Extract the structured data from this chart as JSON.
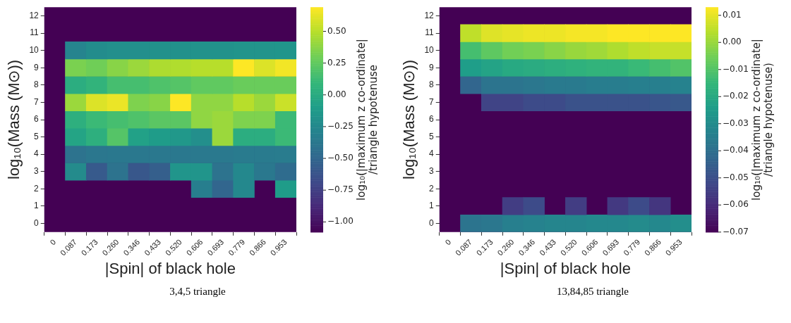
{
  "chart_data": [
    {
      "type": "heatmap",
      "xlabel": "|Spin| of black hole",
      "ylabel": "log₁₀(Mass (M⊙))",
      "clabel": "log₁₀(|maximum z co-ordinate|\n/triangle hypotenuse",
      "annotations": [
        "3,4,5 triangle"
      ],
      "categories": [
        "0",
        "0.087",
        "0.173",
        "0.260",
        "0.346",
        "0.433",
        "0.520",
        "0.606",
        "0.693",
        "0.779",
        "0.866",
        "0.953"
      ],
      "y_categories": [
        "12",
        "11",
        "10",
        "9",
        "8",
        "7",
        "6",
        "5",
        "4",
        "3",
        "2",
        "1",
        "0"
      ],
      "clim": [
        -1.08,
        0.69
      ],
      "cticks": [
        {
          "value": -1.0,
          "label": "−1.00"
        },
        -0.75,
        {
          "value": -0.5,
          "label": "−0.50"
        },
        -0.25,
        {
          "value": 0.0,
          "label": "0.00"
        },
        0.25,
        {
          "value": 0.5,
          "label": "0.50"
        }
      ],
      "cells": [
        [
          null,
          null,
          null,
          null,
          null,
          null,
          null,
          null,
          null,
          null,
          null,
          null
        ],
        [
          null,
          null,
          null,
          null,
          null,
          null,
          null,
          null,
          null,
          null,
          null,
          null
        ],
        [
          null,
          -0.28,
          -0.22,
          -0.2,
          -0.2,
          -0.19,
          -0.19,
          -0.18,
          -0.18,
          -0.17,
          -0.17,
          -0.16
        ],
        [
          null,
          0.33,
          0.3,
          0.37,
          0.42,
          0.47,
          0.48,
          0.5,
          0.5,
          0.69,
          0.6,
          0.66
        ],
        [
          null,
          0.02,
          0.07,
          0.16,
          0.16,
          0.19,
          0.21,
          0.25,
          0.25,
          0.28,
          0.28,
          0.28
        ],
        [
          null,
          0.42,
          0.6,
          0.64,
          0.34,
          0.37,
          0.69,
          0.39,
          0.39,
          0.5,
          0.42,
          0.55
        ],
        [
          null,
          0.04,
          0.12,
          0.16,
          0.19,
          0.23,
          0.23,
          0.39,
          0.42,
          0.34,
          0.34,
          0.12
        ],
        [
          null,
          -0.05,
          0.04,
          0.21,
          -0.07,
          -0.11,
          -0.14,
          -0.2,
          0.42,
          0.02,
          0.02,
          0.12
        ],
        [
          null,
          -0.41,
          -0.38,
          -0.37,
          -0.37,
          -0.37,
          -0.37,
          -0.36,
          -0.36,
          -0.35,
          -0.35,
          -0.34
        ],
        [
          null,
          -0.23,
          -0.58,
          -0.41,
          -0.6,
          -0.55,
          -0.16,
          -0.16,
          -0.41,
          -0.25,
          -0.37,
          -0.46
        ],
        [
          null,
          null,
          null,
          null,
          null,
          null,
          null,
          -0.32,
          -0.5,
          -0.25,
          null,
          -0.11
        ],
        [
          null,
          null,
          null,
          null,
          null,
          null,
          null,
          null,
          null,
          null,
          null,
          null
        ],
        [
          null,
          null,
          null,
          null,
          null,
          null,
          null,
          null,
          null,
          null,
          null,
          null
        ]
      ]
    },
    {
      "type": "heatmap",
      "xlabel": "|Spin| of black hole",
      "ylabel": "log₁₀(Mass (M⊙))",
      "clabel": "log₁₀(|maximum z co-ordinate|\n/triangle hypotenuse)",
      "annotations": [
        "13,84,85 triangle"
      ],
      "categories": [
        "0",
        "0.087",
        "0.173",
        "0.260",
        "0.346",
        "0.433",
        "0.520",
        "0.606",
        "0.693",
        "0.779",
        "0.866",
        "0.953"
      ],
      "y_categories": [
        "12",
        "11",
        "10",
        "9",
        "8",
        "7",
        "6",
        "5",
        "4",
        "3",
        "2",
        "1",
        "0"
      ],
      "clim": [
        -0.07,
        0.013
      ],
      "cticks": [
        -0.07,
        -0.06,
        -0.05,
        -0.04,
        -0.03,
        -0.02,
        -0.01,
        {
          "value": 0.0,
          "label": "0.00"
        },
        0.01
      ],
      "cells": [
        [
          null,
          null,
          null,
          null,
          null,
          null,
          null,
          null,
          null,
          null,
          null,
          null
        ],
        [
          null,
          0.005,
          0.009,
          0.01,
          0.011,
          0.011,
          0.012,
          0.012,
          0.013,
          0.013,
          0.013,
          0.013
        ],
        [
          null,
          -0.012,
          -0.008,
          -0.005,
          -0.004,
          -0.002,
          0.0,
          0.001,
          0.003,
          0.005,
          0.006,
          0.006
        ],
        [
          null,
          -0.024,
          -0.022,
          -0.02,
          -0.019,
          -0.018,
          -0.017,
          -0.016,
          -0.016,
          -0.014,
          -0.012,
          -0.01
        ],
        [
          null,
          -0.043,
          -0.038,
          -0.038,
          -0.037,
          -0.036,
          -0.036,
          -0.035,
          -0.035,
          -0.034,
          -0.034,
          -0.033
        ],
        [
          null,
          null,
          -0.053,
          -0.053,
          -0.051,
          -0.051,
          -0.049,
          -0.049,
          -0.049,
          -0.049,
          -0.048,
          -0.047
        ],
        [
          null,
          null,
          null,
          null,
          null,
          null,
          null,
          null,
          null,
          null,
          null,
          null
        ],
        [
          null,
          null,
          null,
          null,
          null,
          null,
          null,
          null,
          null,
          null,
          null,
          null
        ],
        [
          null,
          null,
          null,
          null,
          null,
          null,
          null,
          null,
          null,
          null,
          null,
          null
        ],
        [
          null,
          null,
          null,
          null,
          null,
          null,
          null,
          null,
          null,
          null,
          null,
          null
        ],
        [
          null,
          null,
          null,
          null,
          null,
          null,
          null,
          null,
          null,
          null,
          null,
          null
        ],
        [
          null,
          null,
          null,
          -0.055,
          -0.051,
          null,
          -0.055,
          null,
          -0.056,
          -0.051,
          -0.057,
          null
        ],
        [
          null,
          -0.038,
          -0.037,
          -0.034,
          -0.033,
          -0.032,
          -0.032,
          -0.031,
          -0.031,
          -0.03,
          -0.031,
          -0.029
        ]
      ]
    }
  ]
}
